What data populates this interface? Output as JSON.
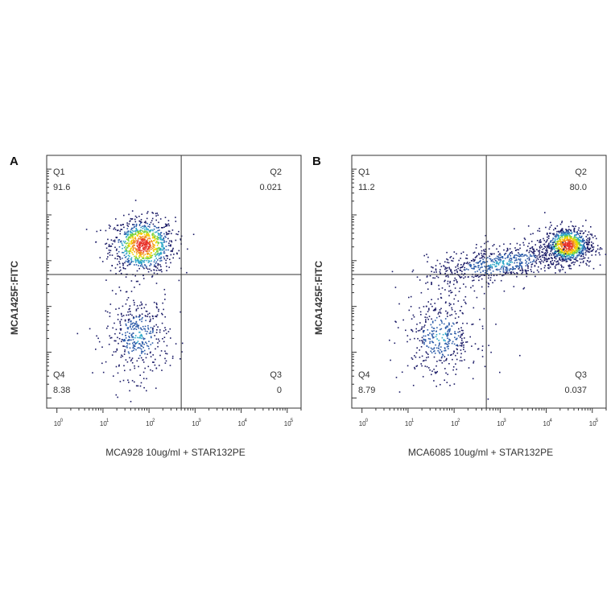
{
  "chart_data": [
    {
      "type": "scatter",
      "panel": "A",
      "xlabel": "MCA928 10ug/ml + STAR132PE",
      "ylabel": "MCA1425F:FITC",
      "xscale": "log",
      "yscale": "log",
      "xlim": [
        0.6,
        200000
      ],
      "ylim": [
        0.6,
        200000
      ],
      "xticks": [
        "0",
        "1",
        "2",
        "3",
        "4",
        "5"
      ],
      "gate": {
        "x": 500,
        "y": 500
      },
      "quadrants": [
        {
          "name": "Q1",
          "value": "91.6",
          "position": "top-left"
        },
        {
          "name": "Q2",
          "value": "0.021",
          "position": "top-right"
        },
        {
          "name": "Q3",
          "value": "0",
          "position": "bottom-right"
        },
        {
          "name": "Q4",
          "value": "8.38",
          "position": "bottom-left"
        }
      ],
      "populations": [
        {
          "label": "major",
          "center_log": [
            1.85,
            3.35
          ],
          "spread_log": [
            0.35,
            0.3
          ]
        },
        {
          "label": "minor",
          "center_log": [
            1.75,
            1.35
          ],
          "spread_log": [
            0.35,
            0.45
          ]
        }
      ]
    },
    {
      "type": "scatter",
      "panel": "B",
      "xlabel": "MCA6085 10ug/ml + STAR132PE",
      "ylabel": "MCA1425F:FITC",
      "xscale": "log",
      "yscale": "log",
      "xlim": [
        0.6,
        200000
      ],
      "ylim": [
        0.6,
        200000
      ],
      "xticks": [
        "0",
        "1",
        "2",
        "3",
        "4",
        "5"
      ],
      "gate": {
        "x": 500,
        "y": 500
      },
      "quadrants": [
        {
          "name": "Q1",
          "value": "11.2",
          "position": "top-left"
        },
        {
          "name": "Q2",
          "value": "80.0",
          "position": "top-right"
        },
        {
          "name": "Q3",
          "value": "0.037",
          "position": "bottom-right"
        },
        {
          "name": "Q4",
          "value": "8.79",
          "position": "bottom-left"
        }
      ],
      "populations": [
        {
          "label": "major",
          "center_log": [
            4.45,
            3.35
          ],
          "spread_log": [
            0.25,
            0.2
          ]
        },
        {
          "label": "smear",
          "center_log": [
            3.0,
            2.95
          ],
          "spread_log": [
            0.8,
            0.2
          ]
        },
        {
          "label": "minor",
          "center_log": [
            1.7,
            1.35
          ],
          "spread_log": [
            0.4,
            0.45
          ]
        }
      ]
    }
  ],
  "colors": {
    "axis": "#333333",
    "gate": "#333333",
    "low": "#1a1a66",
    "mid": "#2aa6c8",
    "high": "#f5d000",
    "peak": "#e8322a"
  }
}
